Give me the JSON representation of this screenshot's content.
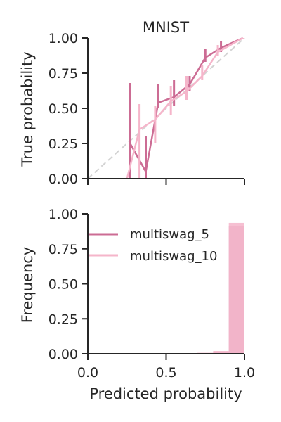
{
  "chart_data": [
    {
      "type": "line",
      "title": "MNIST",
      "xlabel": "",
      "ylabel": "True probability",
      "xlim": [
        0,
        1
      ],
      "ylim": [
        0,
        1
      ],
      "xticks": [
        "",
        "",
        ""
      ],
      "yticks": [
        "0.00",
        "0.25",
        "0.50",
        "0.75",
        "1.00"
      ],
      "grid": false,
      "reference_line": {
        "x": [
          0,
          1
        ],
        "y": [
          0,
          1
        ],
        "style": "dashed",
        "color": "#d3d3d3"
      },
      "series": [
        {
          "name": "multiswag_5",
          "color": "#cc6c94",
          "x": [
            0.27,
            0.37,
            0.45,
            0.55,
            0.65,
            0.75,
            0.85,
            0.99
          ],
          "y": [
            0.25,
            0.05,
            0.54,
            0.58,
            0.67,
            0.86,
            0.93,
            1.0
          ],
          "err_low": [
            0.0,
            0.0,
            0.5,
            0.52,
            0.62,
            0.83,
            0.9,
            0.99
          ],
          "err_high": [
            0.68,
            0.3,
            0.67,
            0.7,
            0.73,
            0.92,
            0.98,
            1.0
          ]
        },
        {
          "name": "multiswag_10",
          "color": "#f5b5ca",
          "x": [
            0.25,
            0.33,
            0.43,
            0.53,
            0.63,
            0.73,
            0.83,
            0.99
          ],
          "y": [
            0.0,
            0.35,
            0.42,
            0.55,
            0.62,
            0.73,
            0.9,
            1.0
          ],
          "err_low": [
            0.0,
            0.0,
            0.25,
            0.45,
            0.56,
            0.7,
            0.87,
            0.99
          ],
          "err_high": [
            0.0,
            0.53,
            0.52,
            0.66,
            0.73,
            0.81,
            0.95,
            1.0
          ]
        }
      ]
    },
    {
      "type": "bar",
      "title": "",
      "xlabel": "Predicted probability",
      "ylabel": "Frequency",
      "xlim": [
        0,
        1
      ],
      "ylim": [
        0,
        1
      ],
      "xticks": [
        "0.0",
        "0.5",
        "1.0"
      ],
      "yticks": [
        "0.00",
        "0.25",
        "0.50",
        "0.75",
        "1.00"
      ],
      "grid": false,
      "legend_position": "upper center",
      "bin_edges": [
        0.0,
        0.1,
        0.2,
        0.3,
        0.4,
        0.5,
        0.6,
        0.7,
        0.8,
        0.9,
        1.0
      ],
      "series": [
        {
          "name": "multiswag_5",
          "color": "#cc6c94",
          "values": [
            0,
            0,
            0,
            0,
            0.002,
            0.002,
            0.003,
            0.005,
            0.013,
            0.91
          ]
        },
        {
          "name": "multiswag_10",
          "color": "#f5b5ca",
          "values": [
            0,
            0,
            0,
            0,
            0.002,
            0.002,
            0.003,
            0.007,
            0.02,
            0.935
          ]
        }
      ]
    }
  ]
}
